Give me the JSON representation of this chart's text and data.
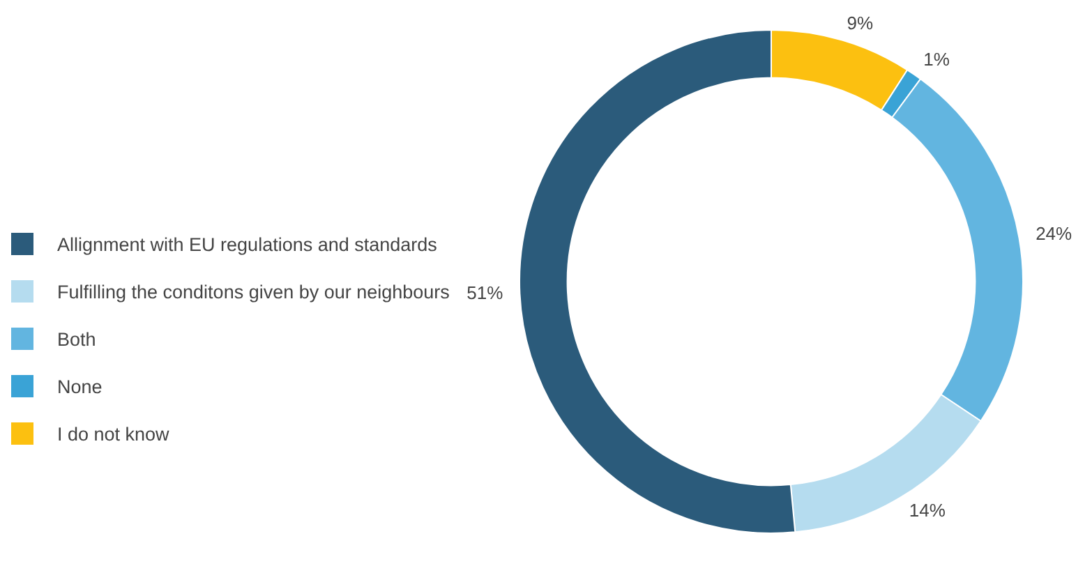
{
  "chart_data": {
    "type": "donut",
    "categories": [
      "Allignment with EU regulations and standards",
      "Fulfilling the conditons given by our neighbours",
      "Both",
      "None",
      "I do not know"
    ],
    "values": [
      51,
      14,
      24,
      1,
      9
    ],
    "colors": [
      "#2b5b7b",
      "#b5dcef",
      "#62b5e0",
      "#3aa3d6",
      "#fcc010"
    ],
    "value_labels": [
      "51%",
      "14%",
      "24%",
      "1%",
      "9%"
    ],
    "legend": "left"
  }
}
